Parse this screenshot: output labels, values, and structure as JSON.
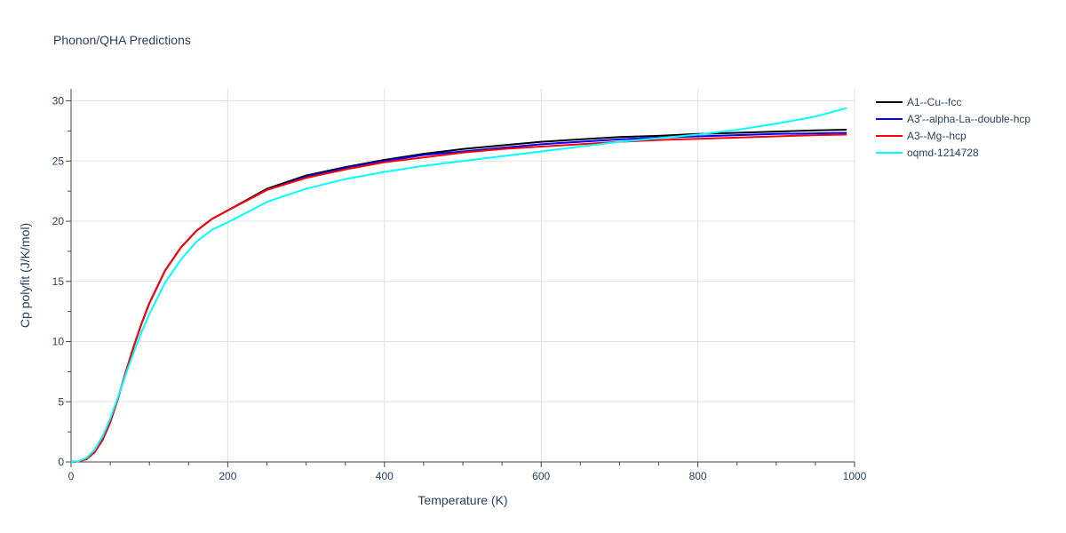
{
  "chart_data": {
    "type": "line",
    "title": "Phonon/QHA Predictions",
    "xlabel": "Temperature (K)",
    "ylabel": "Cp polyfit (J/K/mol)",
    "xlim": [
      0,
      1000
    ],
    "ylim": [
      0,
      31
    ],
    "xticks": [
      0,
      200,
      400,
      600,
      800,
      1000
    ],
    "yticks": [
      0,
      5,
      10,
      15,
      20,
      25,
      30
    ],
    "grid": true,
    "legend_position": "right",
    "series": [
      {
        "name": "A1--Cu--fcc",
        "color": "#000000",
        "x": [
          0,
          10,
          20,
          30,
          40,
          50,
          60,
          70,
          80,
          90,
          100,
          120,
          140,
          160,
          180,
          200,
          250,
          300,
          350,
          400,
          450,
          500,
          550,
          600,
          650,
          700,
          750,
          800,
          850,
          900,
          950,
          990
        ],
        "y": [
          0,
          0.05,
          0.25,
          0.8,
          1.8,
          3.3,
          5.3,
          7.5,
          9.6,
          11.5,
          13.2,
          15.9,
          17.8,
          19.2,
          20.2,
          20.9,
          22.7,
          23.8,
          24.5,
          25.1,
          25.6,
          26.0,
          26.3,
          26.6,
          26.8,
          27.0,
          27.1,
          27.25,
          27.35,
          27.45,
          27.55,
          27.6
        ]
      },
      {
        "name": "A3'--alpha-La--double-hcp",
        "color": "#0000ff",
        "x": [
          0,
          10,
          20,
          30,
          40,
          50,
          60,
          70,
          80,
          90,
          100,
          120,
          140,
          160,
          180,
          200,
          250,
          300,
          350,
          400,
          450,
          500,
          550,
          600,
          650,
          700,
          750,
          800,
          850,
          900,
          950,
          990
        ],
        "y": [
          0,
          0.05,
          0.25,
          0.8,
          1.8,
          3.3,
          5.3,
          7.5,
          9.6,
          11.5,
          13.2,
          15.9,
          17.8,
          19.2,
          20.2,
          20.9,
          22.6,
          23.7,
          24.4,
          25.0,
          25.5,
          25.8,
          26.1,
          26.4,
          26.6,
          26.8,
          26.95,
          27.05,
          27.15,
          27.25,
          27.3,
          27.35
        ]
      },
      {
        "name": "A3--Mg--hcp",
        "color": "#ff0000",
        "x": [
          0,
          10,
          20,
          30,
          40,
          50,
          60,
          70,
          80,
          90,
          100,
          120,
          140,
          160,
          180,
          200,
          250,
          300,
          350,
          400,
          450,
          500,
          550,
          600,
          650,
          700,
          750,
          800,
          850,
          900,
          950,
          990
        ],
        "y": [
          0,
          0.05,
          0.25,
          0.8,
          1.8,
          3.3,
          5.3,
          7.5,
          9.6,
          11.5,
          13.2,
          15.9,
          17.8,
          19.2,
          20.2,
          20.9,
          22.6,
          23.6,
          24.3,
          24.9,
          25.3,
          25.7,
          26.0,
          26.2,
          26.4,
          26.6,
          26.75,
          26.85,
          26.95,
          27.05,
          27.15,
          27.2
        ]
      },
      {
        "name": "oqmd-1214728",
        "color": "#00ffff",
        "x": [
          0,
          10,
          20,
          30,
          40,
          50,
          60,
          70,
          80,
          90,
          100,
          120,
          140,
          160,
          180,
          200,
          250,
          300,
          350,
          400,
          450,
          500,
          550,
          600,
          650,
          700,
          750,
          800,
          850,
          900,
          950,
          990
        ],
        "y": [
          0,
          0.07,
          0.35,
          1.0,
          2.1,
          3.6,
          5.4,
          7.3,
          9.1,
          10.8,
          12.3,
          14.9,
          16.8,
          18.3,
          19.3,
          19.9,
          21.6,
          22.7,
          23.5,
          24.1,
          24.6,
          25.0,
          25.4,
          25.8,
          26.2,
          26.6,
          26.9,
          27.2,
          27.6,
          28.1,
          28.7,
          29.4
        ]
      }
    ]
  }
}
